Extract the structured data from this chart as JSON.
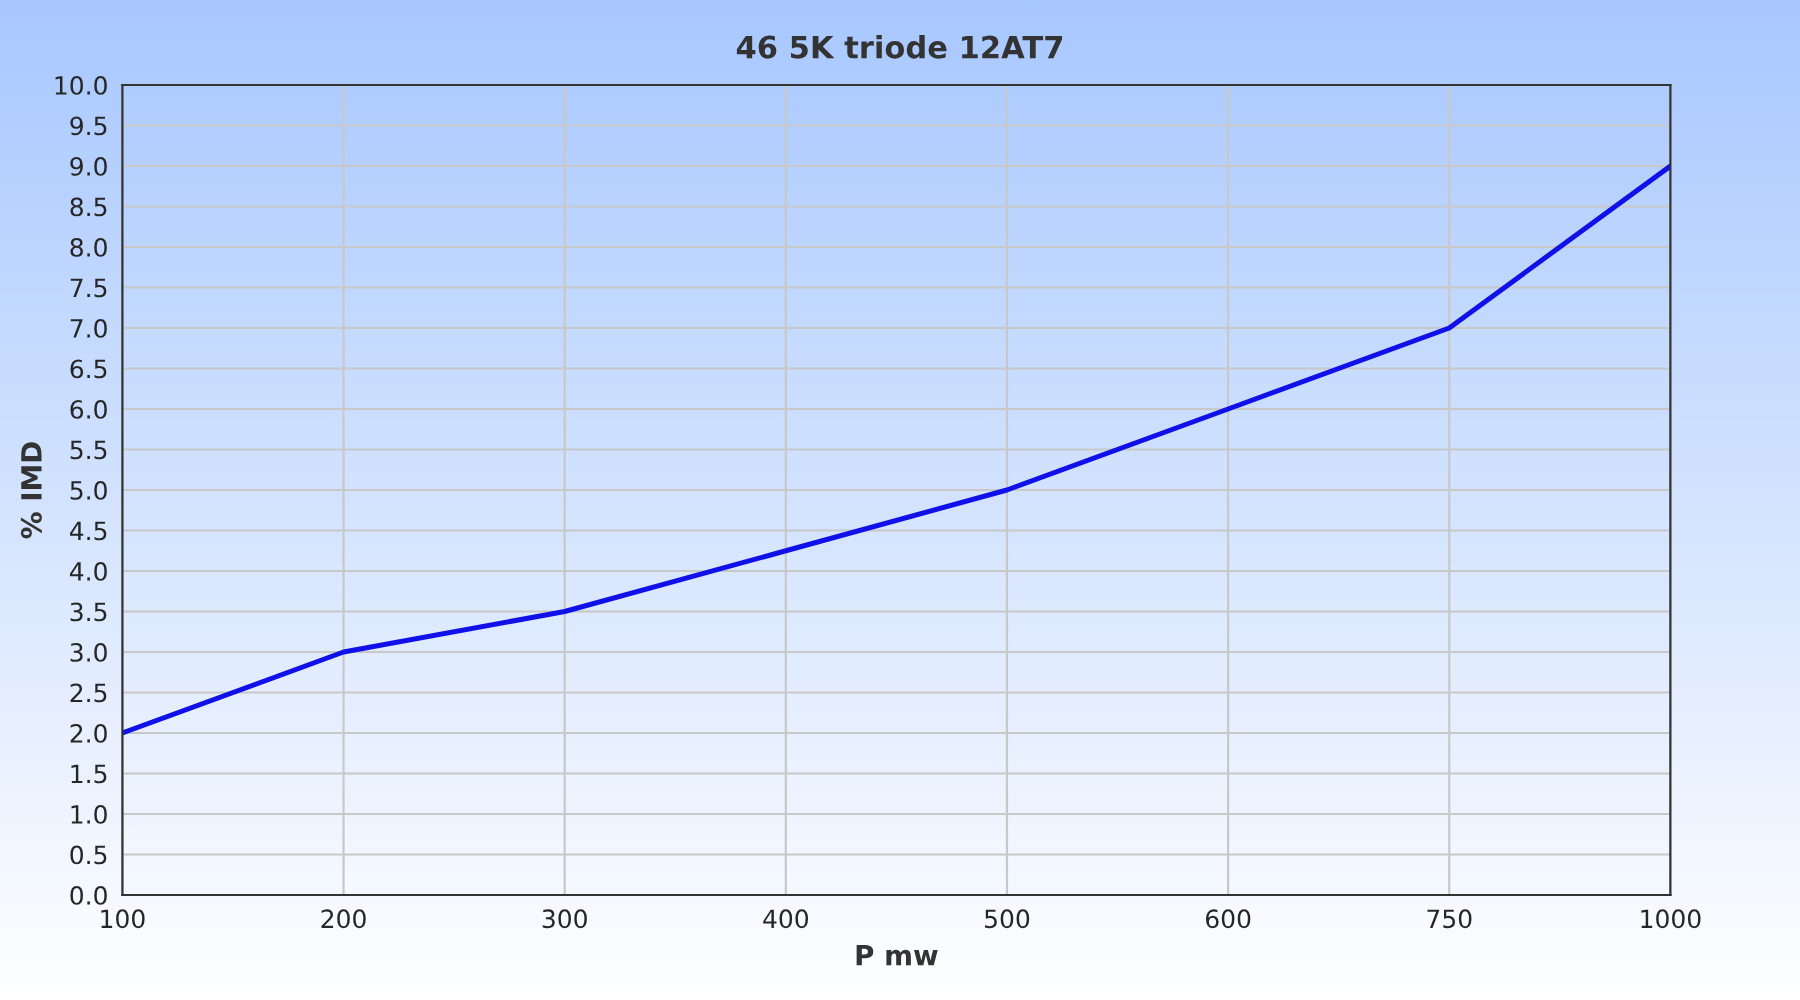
{
  "chart_data": {
    "type": "line",
    "title": "46 5K triode 12AT7",
    "xlabel": "P mw",
    "ylabel": "% IMD",
    "categories": [
      "100",
      "200",
      "300",
      "400",
      "500",
      "600",
      "750",
      "1000"
    ],
    "series": [
      {
        "color": "#1010e8",
        "values": [
          2.0,
          3.0,
          3.5,
          4.25,
          5.0,
          6.0,
          7.0,
          9.0
        ]
      }
    ],
    "ylim": [
      0,
      10
    ],
    "yticks": [
      {
        "value": 0,
        "label": "0.0"
      },
      0.5,
      {
        "value": 1,
        "label": "1.0"
      },
      1.5,
      {
        "value": 2,
        "label": "2.0"
      },
      2.5,
      {
        "value": 3,
        "label": "3.0"
      },
      3.5,
      {
        "value": 4,
        "label": "4.0"
      },
      4.5,
      {
        "value": 5,
        "label": "5.0"
      },
      5.5,
      {
        "value": 6,
        "label": "6.0"
      },
      6.5,
      {
        "value": 7,
        "label": "7.0"
      },
      7.5,
      {
        "value": 8,
        "label": "8.0"
      },
      8.5,
      {
        "value": 9,
        "label": "9.0"
      },
      9.5,
      {
        "value": 10,
        "label": "10.0"
      }
    ],
    "grid": true,
    "marker": "none",
    "line_style": "solid"
  }
}
